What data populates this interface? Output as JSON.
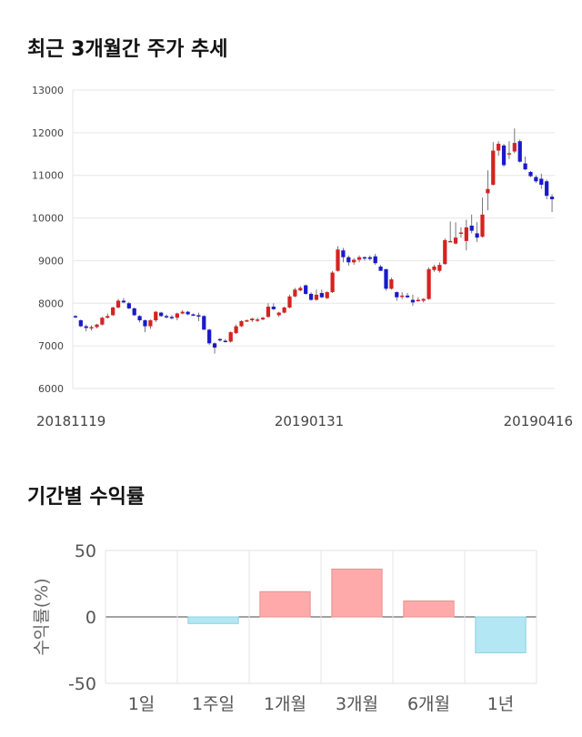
{
  "sections": {
    "price_title": "최근 3개월간 주가 추세",
    "returns_title": "기간별 수익률"
  },
  "chart_data": [
    {
      "type": "candlestick",
      "title": "최근 3개월간 주가 추세",
      "ylim": [
        6000,
        13000
      ],
      "y_ticks": [
        "13000",
        "12000",
        "11000",
        "10000",
        "9000",
        "8000",
        "7000",
        "6000"
      ],
      "x_labels": [
        "20181119",
        "20190131",
        "20190416"
      ],
      "grid": true,
      "colors": {
        "up": "#d62222",
        "down": "#1a1acc",
        "wick": "#555555"
      },
      "ohlc": [
        [
          7700,
          7720,
          7650,
          7680
        ],
        [
          7600,
          7620,
          7440,
          7460
        ],
        [
          7460,
          7500,
          7340,
          7420
        ],
        [
          7420,
          7480,
          7360,
          7440
        ],
        [
          7440,
          7520,
          7410,
          7500
        ],
        [
          7500,
          7680,
          7480,
          7660
        ],
        [
          7660,
          7760,
          7640,
          7700
        ],
        [
          7720,
          7920,
          7700,
          7900
        ],
        [
          7900,
          8100,
          7880,
          8060
        ],
        [
          8060,
          8120,
          8000,
          8020
        ],
        [
          8000,
          8030,
          7860,
          7880
        ],
        [
          7880,
          7900,
          7700,
          7720
        ],
        [
          7700,
          7720,
          7550,
          7600
        ],
        [
          7600,
          7620,
          7320,
          7460
        ],
        [
          7460,
          7620,
          7400,
          7600
        ],
        [
          7600,
          7820,
          7560,
          7800
        ],
        [
          7780,
          7800,
          7680,
          7700
        ],
        [
          7700,
          7740,
          7640,
          7680
        ],
        [
          7680,
          7720,
          7620,
          7660
        ],
        [
          7660,
          7780,
          7600,
          7760
        ],
        [
          7760,
          7840,
          7740,
          7800
        ],
        [
          7800,
          7820,
          7720,
          7740
        ],
        [
          7740,
          7760,
          7700,
          7720
        ],
        [
          7720,
          7780,
          7580,
          7700
        ],
        [
          7700,
          7720,
          7380,
          7380
        ],
        [
          7380,
          7400,
          7020,
          7060
        ],
        [
          7060,
          7080,
          6820,
          6960
        ],
        [
          7160,
          7180,
          7100,
          7140
        ],
        [
          7120,
          7160,
          7080,
          7100
        ],
        [
          7100,
          7340,
          7080,
          7320
        ],
        [
          7300,
          7500,
          7280,
          7460
        ],
        [
          7460,
          7600,
          7440,
          7580
        ],
        [
          7580,
          7620,
          7560,
          7600
        ],
        [
          7600,
          7660,
          7560,
          7640
        ],
        [
          7620,
          7660,
          7560,
          7620
        ],
        [
          7620,
          7680,
          7600,
          7660
        ],
        [
          7680,
          8000,
          7660,
          7920
        ],
        [
          7920,
          8000,
          7840,
          7860
        ],
        [
          7720,
          7800,
          7680,
          7780
        ],
        [
          7780,
          7920,
          7760,
          7900
        ],
        [
          7900,
          8200,
          7880,
          8160
        ],
        [
          8160,
          8360,
          8140,
          8320
        ],
        [
          8300,
          8400,
          8280,
          8360
        ],
        [
          8420,
          8440,
          8200,
          8220
        ],
        [
          8220,
          8260,
          8060,
          8080
        ],
        [
          8080,
          8320,
          8060,
          8200
        ],
        [
          8240,
          8320,
          8120,
          8140
        ],
        [
          8120,
          8280,
          8100,
          8260
        ],
        [
          8260,
          8760,
          8240,
          8720
        ],
        [
          8760,
          9340,
          8740,
          9260
        ],
        [
          9240,
          9300,
          8960,
          9080
        ],
        [
          9080,
          9120,
          8880,
          8960
        ],
        [
          8960,
          9060,
          8900,
          9020
        ],
        [
          9020,
          9120,
          8960,
          9080
        ],
        [
          9080,
          9100,
          9000,
          9060
        ],
        [
          9080,
          9120,
          9000,
          9040
        ],
        [
          9100,
          9160,
          8900,
          8940
        ],
        [
          8860,
          8900,
          8760,
          8760
        ],
        [
          8800,
          8800,
          8300,
          8340
        ],
        [
          8340,
          8600,
          8320,
          8560
        ],
        [
          8260,
          8280,
          8060,
          8140
        ],
        [
          8160,
          8260,
          8100,
          8180
        ],
        [
          8180,
          8240,
          8120,
          8140
        ],
        [
          8080,
          8200,
          7940,
          8020
        ],
        [
          8060,
          8140,
          8040,
          8080
        ],
        [
          8060,
          8120,
          8020,
          8100
        ],
        [
          8100,
          8840,
          8080,
          8800
        ],
        [
          8780,
          8900,
          8740,
          8860
        ],
        [
          8760,
          8960,
          8720,
          8900
        ],
        [
          8920,
          9520,
          8900,
          9480
        ],
        [
          9460,
          9920,
          9440,
          9460
        ],
        [
          9400,
          9900,
          9380,
          9540
        ],
        [
          9640,
          9780,
          9540,
          9660
        ],
        [
          9460,
          9960,
          9240,
          9780
        ],
        [
          9820,
          10080,
          9640,
          9700
        ],
        [
          9640,
          9900,
          9440,
          9540
        ],
        [
          9560,
          10480,
          9540,
          10080
        ],
        [
          10580,
          11120,
          10180,
          10680
        ],
        [
          10780,
          11780,
          10760,
          11580
        ],
        [
          11580,
          11800,
          11460,
          11740
        ],
        [
          11700,
          11740,
          11200,
          11240
        ],
        [
          11500,
          11800,
          11380,
          11520
        ],
        [
          11560,
          12100,
          11520,
          11760
        ],
        [
          11800,
          11840,
          11300,
          11320
        ],
        [
          11280,
          11440,
          11120,
          11140
        ],
        [
          11080,
          11100,
          10960,
          10980
        ],
        [
          10960,
          11000,
          10820,
          10860
        ],
        [
          10920,
          11040,
          10680,
          10780
        ],
        [
          10860,
          10900,
          10440,
          10520
        ],
        [
          10500,
          10560,
          10140,
          10440
        ]
      ]
    },
    {
      "type": "bar",
      "title": "기간별 수익률",
      "ylabel": "수익률(%)",
      "ylim": [
        -50,
        50
      ],
      "y_ticks": [
        "50",
        "0",
        "-50"
      ],
      "categories": [
        "1일",
        "1주일",
        "1개월",
        "3개월",
        "6개월",
        "1년"
      ],
      "values": [
        0,
        -5,
        19,
        36,
        12,
        -27
      ],
      "colors": {
        "positive": "#ffaaaa",
        "negative": "#b3e7f3"
      }
    }
  ]
}
